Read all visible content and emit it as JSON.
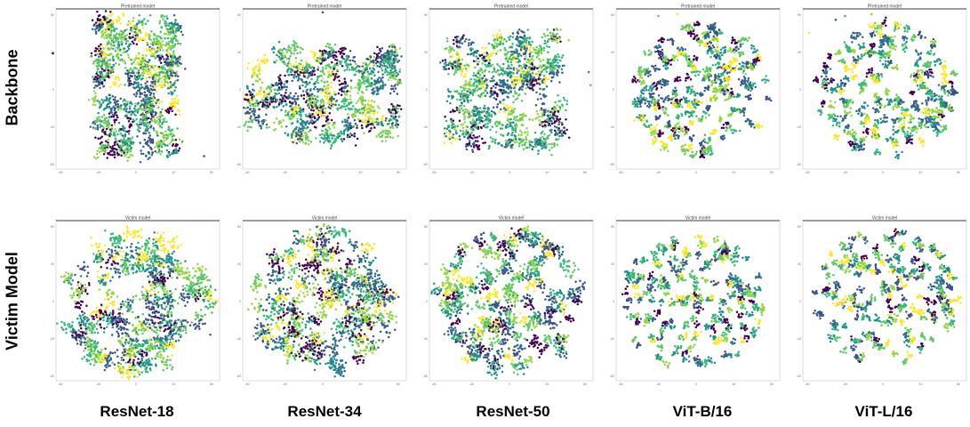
{
  "figure": {
    "row_labels": [
      "Backbone",
      "Victim Model"
    ],
    "col_labels": [
      "ResNet-18",
      "ResNet-34",
      "ResNet-50",
      "ViT-B/16",
      "ViT-L/16"
    ]
  },
  "colors": {
    "palette": [
      "#440154",
      "#3b528b",
      "#21918c",
      "#5ec962",
      "#fde725",
      "#31688e",
      "#35b779",
      "#90d743"
    ],
    "axis": "#000000",
    "frame": "#bbbbbb"
  },
  "chart_data": [
    {
      "type": "scatter",
      "row": "Backbone",
      "model": "ResNet-18",
      "title": "Pretrained model",
      "xlim": [
        -80,
        80
      ],
      "ylim": [
        -80,
        80
      ],
      "xticks": [
        "-80",
        "-40",
        "0",
        "40",
        "80"
      ],
      "yticks": [
        "80",
        "40",
        "0",
        "-40",
        "-80"
      ],
      "points": 1900,
      "clusters": 140,
      "center": [
        0.5,
        0.48
      ],
      "spread": [
        0.24,
        0.4
      ],
      "shape": "rect",
      "tightness": 0.022,
      "outliers": [
        [
          -88,
          40
        ],
        [
          72,
          -70
        ]
      ]
    },
    {
      "type": "scatter",
      "row": "Backbone",
      "model": "ResNet-34",
      "title": "Pretrained model",
      "xlim": [
        -80,
        80
      ],
      "ylim": [
        -80,
        80
      ],
      "xticks": [
        "-80",
        "-40",
        "0",
        "40",
        "80"
      ],
      "yticks": [
        "80",
        "40",
        "0",
        "-40",
        "-80"
      ],
      "points": 1900,
      "clusters": 140,
      "center": [
        0.5,
        0.52
      ],
      "spread": [
        0.44,
        0.27
      ],
      "shape": "rect",
      "tightness": 0.022,
      "outliers": [
        [
          0,
          84
        ]
      ]
    },
    {
      "type": "scatter",
      "row": "Backbone",
      "model": "ResNet-50",
      "title": "Pretrained model",
      "xlim": [
        -80,
        80
      ],
      "ylim": [
        -80,
        80
      ],
      "xticks": [
        "-80",
        "-40",
        "0",
        "40",
        "80"
      ],
      "yticks": [
        "80",
        "40",
        "0",
        "-40",
        "-80"
      ],
      "points": 1800,
      "clusters": 140,
      "center": [
        0.46,
        0.5
      ],
      "spread": [
        0.35,
        0.33
      ],
      "shape": "rect",
      "tightness": 0.022,
      "outliers": [
        [
          84,
          20
        ],
        [
          86,
          6
        ]
      ]
    },
    {
      "type": "scatter",
      "row": "Backbone",
      "model": "ViT-B/16",
      "title": "Pretrained model",
      "xlim": [
        -80,
        80
      ],
      "ylim": [
        -80,
        80
      ],
      "xticks": [
        "-80",
        "-40",
        "0",
        "40",
        "80"
      ],
      "yticks": [
        "80",
        "40",
        "0",
        "-40",
        "-80"
      ],
      "points": 1600,
      "clusters": 190,
      "center": [
        0.52,
        0.5
      ],
      "spread": [
        0.41,
        0.4
      ],
      "shape": "disc",
      "tightness": 0.011,
      "outliers": [
        [
          -40,
          80
        ],
        [
          -20,
          82
        ]
      ]
    },
    {
      "type": "scatter",
      "row": "Backbone",
      "model": "ViT-L/16",
      "title": "Pretrained model",
      "xlim": [
        -80,
        80
      ],
      "ylim": [
        -80,
        80
      ],
      "xticks": [
        "-80",
        "-40",
        "0",
        "40",
        "80"
      ],
      "yticks": [
        "80",
        "40",
        "0",
        "-40",
        "-80"
      ],
      "points": 1600,
      "clusters": 190,
      "center": [
        0.52,
        0.5
      ],
      "spread": [
        0.42,
        0.4
      ],
      "shape": "disc",
      "tightness": 0.011,
      "outliers": [
        [
          -78,
          62
        ],
        [
          -50,
          76
        ],
        [
          -40,
          80
        ],
        [
          -12,
          82
        ]
      ]
    },
    {
      "type": "scatter",
      "row": "Victim Model",
      "model": "ResNet-18",
      "title": "Victim model",
      "xlim": [
        -80,
        80
      ],
      "ylim": [
        -80,
        80
      ],
      "xticks": [
        "-80",
        "-40",
        "0",
        "40",
        "80"
      ],
      "yticks": [
        "80",
        "40",
        "0",
        "-40",
        "-80"
      ],
      "points": 2100,
      "clusters": 150,
      "center": [
        0.5,
        0.5
      ],
      "spread": [
        0.44,
        0.42
      ],
      "shape": "disc",
      "tightness": 0.022,
      "outliers": []
    },
    {
      "type": "scatter",
      "row": "Victim Model",
      "model": "ResNet-34",
      "title": "Victim model",
      "xlim": [
        -80,
        80
      ],
      "ylim": [
        -80,
        80
      ],
      "xticks": [
        "-80",
        "-40",
        "0",
        "40",
        "80"
      ],
      "yticks": [
        "80",
        "40",
        "0",
        "-40",
        "-80"
      ],
      "points": 2100,
      "clusters": 150,
      "center": [
        0.5,
        0.5
      ],
      "spread": [
        0.42,
        0.42
      ],
      "shape": "disc",
      "tightness": 0.022,
      "outliers": []
    },
    {
      "type": "scatter",
      "row": "Victim Model",
      "model": "ResNet-50",
      "title": "Victim model",
      "xlim": [
        -80,
        80
      ],
      "ylim": [
        -80,
        80
      ],
      "xticks": [
        "-80",
        "-40",
        "0",
        "40",
        "80"
      ],
      "yticks": [
        "80",
        "40",
        "0",
        "-40",
        "-80"
      ],
      "points": 2000,
      "clusters": 160,
      "center": [
        0.5,
        0.5
      ],
      "spread": [
        0.43,
        0.43
      ],
      "shape": "disc",
      "tightness": 0.018,
      "outliers": []
    },
    {
      "type": "scatter",
      "row": "Victim Model",
      "model": "ViT-B/16",
      "title": "Victim model",
      "xlim": [
        -80,
        80
      ],
      "ylim": [
        -80,
        80
      ],
      "xticks": [
        "-80",
        "-40",
        "0",
        "40",
        "80"
      ],
      "yticks": [
        "80",
        "40",
        "0",
        "-40",
        "-80"
      ],
      "points": 1500,
      "clusters": 200,
      "center": [
        0.48,
        0.5
      ],
      "spread": [
        0.43,
        0.4
      ],
      "shape": "disc",
      "tightness": 0.01,
      "outliers": []
    },
    {
      "type": "scatter",
      "row": "Victim Model",
      "model": "ViT-L/16",
      "title": "Victim model",
      "xlim": [
        -80,
        80
      ],
      "ylim": [
        -80,
        80
      ],
      "xticks": [
        "-80",
        "-40",
        "0",
        "40",
        "80"
      ],
      "yticks": [
        "80",
        "40",
        "0",
        "-40",
        "-80"
      ],
      "points": 1500,
      "clusters": 200,
      "center": [
        0.52,
        0.48
      ],
      "spread": [
        0.43,
        0.4
      ],
      "shape": "disc",
      "tightness": 0.01,
      "outliers": []
    }
  ]
}
